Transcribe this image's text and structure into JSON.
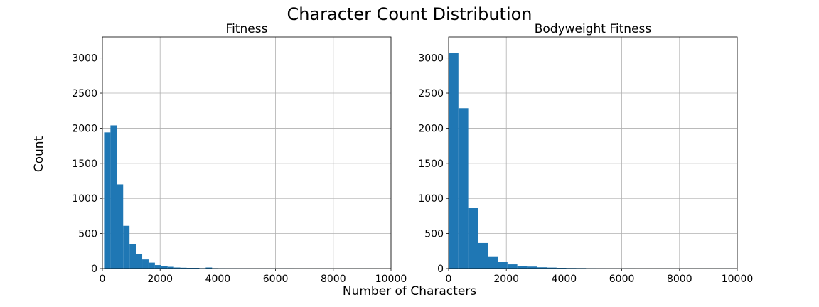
{
  "figure": {
    "title": "Character Count Distribution",
    "xlabel": "Number of Characters",
    "ylabel": "Count"
  },
  "chart_data": [
    {
      "type": "bar",
      "title": "Fitness",
      "xlim": [
        0,
        10000
      ],
      "ylim": [
        0,
        3300
      ],
      "xticks": [
        0,
        2000,
        4000,
        6000,
        8000,
        10000
      ],
      "yticks": [
        0,
        500,
        1000,
        1500,
        2000,
        2500,
        3000
      ],
      "grid": true,
      "color": "#1f77b4",
      "bin_width": 220,
      "bin_start": 60,
      "values": [
        1940,
        2040,
        1200,
        610,
        350,
        205,
        130,
        85,
        50,
        35,
        25,
        15,
        12,
        10,
        10,
        6,
        15,
        6,
        5,
        4,
        4,
        3,
        3,
        2,
        2,
        2,
        2,
        2,
        2,
        2,
        1,
        1,
        1,
        1,
        1,
        1,
        1,
        1,
        1,
        1,
        1,
        1,
        1
      ]
    },
    {
      "type": "bar",
      "title": "Bodyweight Fitness",
      "xlim": [
        0,
        10000
      ],
      "ylim": [
        0,
        3300
      ],
      "xticks": [
        0,
        2000,
        4000,
        6000,
        8000,
        10000
      ],
      "yticks": [
        0,
        500,
        1000,
        1500,
        2000,
        2500,
        3000
      ],
      "grid": true,
      "color": "#1f77b4",
      "bin_width": 340,
      "bin_start": 0,
      "values": [
        3075,
        2285,
        870,
        365,
        175,
        100,
        60,
        40,
        28,
        18,
        14,
        10,
        8,
        7,
        5,
        3,
        2,
        2,
        2,
        1,
        1,
        1,
        1,
        1,
        1,
        1,
        1,
        1,
        1
      ]
    }
  ]
}
